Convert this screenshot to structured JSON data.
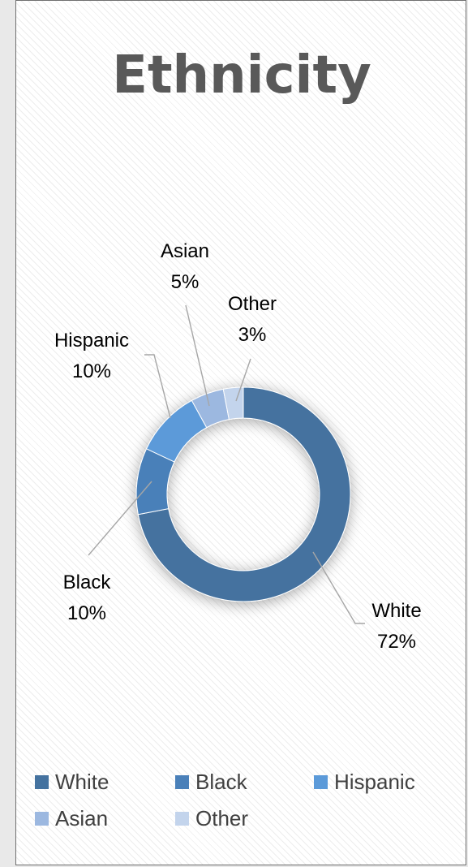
{
  "title": "Ethnicity",
  "chart_data": {
    "type": "pie",
    "title": "Ethnicity",
    "style": "doughnut",
    "categories": [
      "White",
      "Black",
      "Hispanic",
      "Asian",
      "Other"
    ],
    "values": [
      72,
      10,
      10,
      5,
      3
    ],
    "value_labels": [
      "72%",
      "10%",
      "10%",
      "5%",
      "3%"
    ],
    "colors": [
      "#44729f",
      "#4a80b9",
      "#5b9ad9",
      "#9cb8e0",
      "#c3d4ec"
    ],
    "legend_position": "bottom"
  },
  "legend": {
    "items": [
      {
        "label": "White",
        "color": "#44729f"
      },
      {
        "label": "Black",
        "color": "#4a80b9"
      },
      {
        "label": "Hispanic",
        "color": "#5b9ad9"
      },
      {
        "label": "Asian",
        "color": "#9cb8e0"
      },
      {
        "label": "Other",
        "color": "#c3d4ec"
      }
    ]
  }
}
